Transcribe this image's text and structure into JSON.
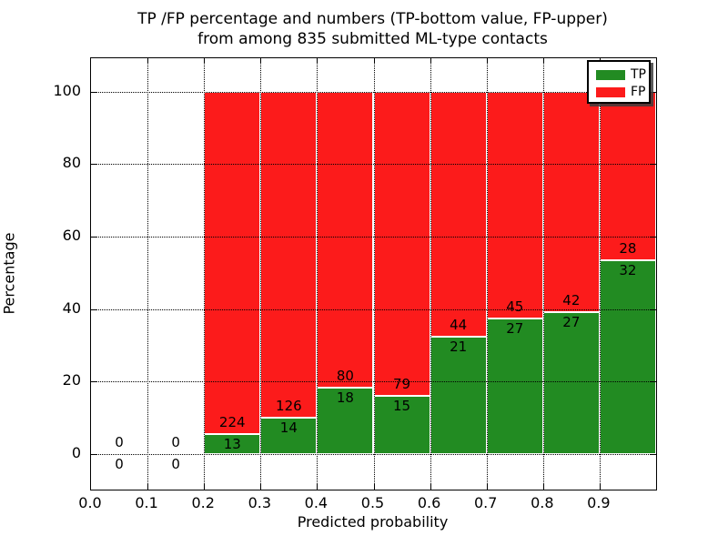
{
  "chart_data": {
    "type": "bar",
    "stacked": true,
    "title_line1": "TP /FP percentage and numbers (TP-bottom value, FP-upper)",
    "title_line2": "from among 835 submitted ML-type contacts",
    "xlabel": "Predicted probability",
    "ylabel": "Percentage",
    "total_contacts": 835,
    "bin_width": 0.1,
    "bin_starts": [
      0.0,
      0.1,
      0.2,
      0.3,
      0.4,
      0.5,
      0.6,
      0.7,
      0.8,
      0.9
    ],
    "series": [
      {
        "name": "TP",
        "color": "#228b22",
        "values": [
          0,
          0,
          13,
          14,
          18,
          15,
          21,
          27,
          27,
          32
        ]
      },
      {
        "name": "FP",
        "color": "#fc1b1b",
        "values": [
          0,
          0,
          224,
          126,
          80,
          79,
          44,
          45,
          42,
          28
        ]
      }
    ],
    "bar_edge_color": "#ffffff",
    "x_ticks": [
      {
        "value": 0.0,
        "label": "0.0"
      },
      {
        "value": 0.1,
        "label": "0.1"
      },
      {
        "value": 0.2,
        "label": "0.2"
      },
      {
        "value": 0.3,
        "label": "0.3"
      },
      {
        "value": 0.4,
        "label": "0.4"
      },
      {
        "value": 0.5,
        "label": "0.5"
      },
      {
        "value": 0.6,
        "label": "0.6"
      },
      {
        "value": 0.7,
        "label": "0.7"
      },
      {
        "value": 0.8,
        "label": "0.8"
      },
      {
        "value": 0.9,
        "label": "0.9"
      }
    ],
    "y_ticks": [
      {
        "value": 0,
        "label": "0"
      },
      {
        "value": 20,
        "label": "20"
      },
      {
        "value": 40,
        "label": "40"
      },
      {
        "value": 60,
        "label": "60"
      },
      {
        "value": 80,
        "label": "80"
      },
      {
        "value": 100,
        "label": "100"
      }
    ],
    "xlim": [
      0.0,
      1.0
    ],
    "ylim": [
      -10,
      110
    ],
    "grid": true,
    "legend_position": "upper-right",
    "legend_entries": [
      "TP",
      "FP"
    ]
  }
}
